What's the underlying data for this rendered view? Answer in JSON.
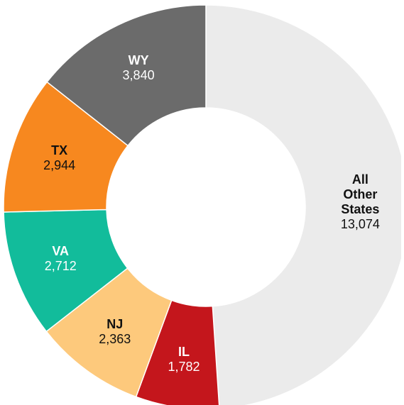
{
  "chart_data": {
    "type": "donut",
    "categories": [
      "All Other States",
      "IL",
      "NJ",
      "VA",
      "TX",
      "WY"
    ],
    "values": [
      13074,
      1782,
      2363,
      2712,
      2944,
      3840
    ],
    "value_labels": [
      "13,074",
      "1,782",
      "2,363",
      "2,712",
      "2,944",
      "3,840"
    ],
    "colors": [
      "#ebebeb",
      "#c4161c",
      "#fdc97c",
      "#12bc9b",
      "#f7881f",
      "#6b6b6b"
    ]
  }
}
